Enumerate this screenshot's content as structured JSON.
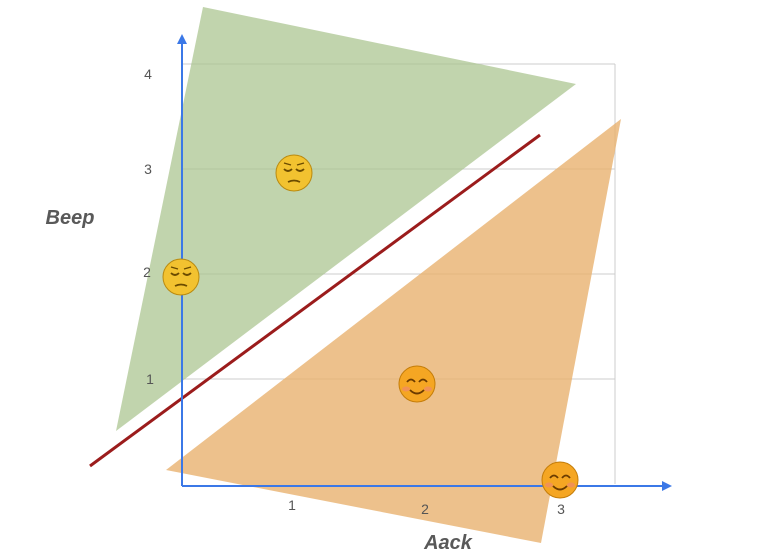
{
  "axes": {
    "x_label": "Aack",
    "y_label": "Beep",
    "x_ticks": [
      "1",
      "2",
      "3"
    ],
    "y_ticks": [
      "1",
      "2",
      "3",
      "4"
    ]
  },
  "regions": [
    {
      "name": "upper-region",
      "color": "#a9c48e"
    },
    {
      "name": "lower-region",
      "color": "#e8b06c"
    }
  ],
  "boundary_color": "#9b1c1c",
  "axis_color": "#3b78e7",
  "points": [
    {
      "x": 1,
      "y": 3,
      "mood": "sad",
      "emoji": "😔"
    },
    {
      "x": 0,
      "y": 2,
      "mood": "sad",
      "emoji": "😔"
    },
    {
      "x": 2,
      "y": 1,
      "mood": "happy",
      "emoji": "😊"
    },
    {
      "x": 3,
      "y": 0,
      "mood": "happy",
      "emoji": "😊"
    }
  ]
}
